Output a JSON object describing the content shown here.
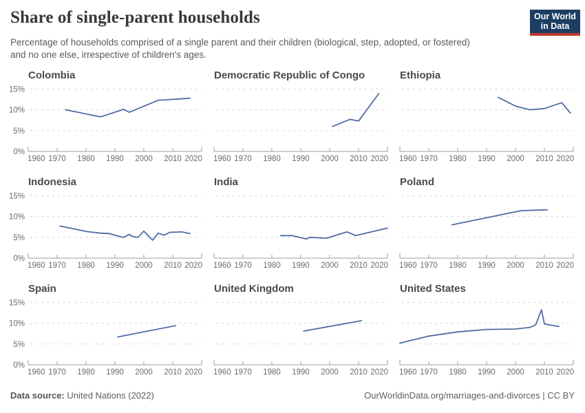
{
  "header": {
    "title": "Share of single-parent households",
    "subtitle": "Percentage of households comprised of a single parent and their children (biological, step, adopted, or fostered) and no one else, irrespective of children's ages.",
    "logo_line1": "Our World",
    "logo_line2": "in Data"
  },
  "colors": {
    "line": "#4d6ca3",
    "logo_bg": "#1d3d63",
    "logo_stripe": "#c0392b",
    "gridline": "#d6d6d6",
    "axis": "#9e9e9e",
    "tick_label": "#6b6b6b"
  },
  "axes": {
    "xlim": [
      1960,
      2020
    ],
    "ylim": [
      0,
      16
    ],
    "x_ticks": [
      1960,
      1970,
      1980,
      1990,
      2000,
      2010,
      2020
    ],
    "y_ticks": [
      {
        "v": 0,
        "label": "0%"
      },
      {
        "v": 5,
        "label": "5%"
      },
      {
        "v": 10,
        "label": "10%"
      },
      {
        "v": 15,
        "label": "15%"
      }
    ],
    "grid": "horizontal-dashed",
    "y_labels_on_first_column_only": true
  },
  "chart_data": [
    {
      "type": "line",
      "title": "Colombia",
      "unit": "%",
      "points": [
        [
          1973,
          10.0
        ],
        [
          1985,
          8.3
        ],
        [
          1993,
          10.1
        ],
        [
          1995,
          9.4
        ],
        [
          2005,
          12.3
        ],
        [
          2010,
          12.5
        ],
        [
          2016,
          12.8
        ]
      ]
    },
    {
      "type": "line",
      "title": "Democratic Republic of Congo",
      "unit": "%",
      "points": [
        [
          2001,
          6.0
        ],
        [
          2007,
          7.7
        ],
        [
          2010,
          7.3
        ],
        [
          2017,
          13.9
        ]
      ]
    },
    {
      "type": "line",
      "title": "Ethiopia",
      "unit": "%",
      "points": [
        [
          1994,
          13.0
        ],
        [
          2000,
          10.9
        ],
        [
          2005,
          10.0
        ],
        [
          2010,
          10.3
        ],
        [
          2016,
          11.7
        ],
        [
          2019,
          9.2
        ]
      ]
    },
    {
      "type": "line",
      "title": "Indonesia",
      "unit": "%",
      "points": [
        [
          1971,
          7.7
        ],
        [
          1976,
          7.0
        ],
        [
          1980,
          6.4
        ],
        [
          1985,
          6.0
        ],
        [
          1988,
          5.9
        ],
        [
          1991,
          5.3
        ],
        [
          1993,
          5.0
        ],
        [
          1995,
          5.7
        ],
        [
          1996,
          5.2
        ],
        [
          1998,
          5.0
        ],
        [
          2000,
          6.5
        ],
        [
          2003,
          4.3
        ],
        [
          2005,
          6.0
        ],
        [
          2007,
          5.5
        ],
        [
          2009,
          6.2
        ],
        [
          2013,
          6.3
        ],
        [
          2016,
          5.9
        ]
      ]
    },
    {
      "type": "line",
      "title": "India",
      "unit": "%",
      "points": [
        [
          1983,
          5.4
        ],
        [
          1987,
          5.4
        ],
        [
          1992,
          4.6
        ],
        [
          1993,
          5.0
        ],
        [
          1999,
          4.8
        ],
        [
          2006,
          6.3
        ],
        [
          2009,
          5.4
        ],
        [
          2020,
          7.2
        ]
      ]
    },
    {
      "type": "line",
      "title": "Poland",
      "unit": "%",
      "points": [
        [
          1978,
          8.0
        ],
        [
          2002,
          11.4
        ],
        [
          2011,
          11.6
        ]
      ]
    },
    {
      "type": "line",
      "title": "Spain",
      "unit": "%",
      "points": [
        [
          1991,
          6.7
        ],
        [
          2011,
          9.4
        ]
      ]
    },
    {
      "type": "line",
      "title": "United Kingdom",
      "unit": "%",
      "points": [
        [
          1991,
          8.1
        ],
        [
          2011,
          10.6
        ]
      ]
    },
    {
      "type": "line",
      "title": "United States",
      "unit": "%",
      "points": [
        [
          1960,
          5.2
        ],
        [
          1970,
          6.9
        ],
        [
          1980,
          7.9
        ],
        [
          1990,
          8.5
        ],
        [
          2000,
          8.6
        ],
        [
          2005,
          9.0
        ],
        [
          2007,
          9.6
        ],
        [
          2009,
          13.2
        ],
        [
          2010,
          9.8
        ],
        [
          2015,
          9.2
        ]
      ]
    }
  ],
  "footer": {
    "source_label": "Data source:",
    "source_value": " United Nations (2022)",
    "right_text": "OurWorldinData.org/marriages-and-divorces | CC BY"
  }
}
